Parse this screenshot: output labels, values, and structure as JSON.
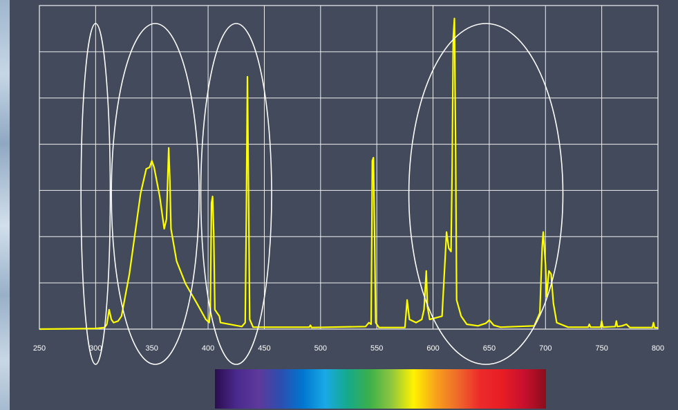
{
  "chart_data": {
    "type": "line",
    "title": "",
    "xlabel": "",
    "ylabel": "",
    "xlim": [
      250,
      800
    ],
    "ylim": [
      0,
      1
    ],
    "x_ticks": [
      "250",
      "300",
      "350",
      "400",
      "450",
      "500",
      "550",
      "600",
      "650",
      "700",
      "750",
      "800"
    ],
    "grid": true,
    "series": [
      {
        "color": "#ffff00",
        "points": [
          [
            250,
            0.0
          ],
          [
            300,
            0.002
          ],
          [
            308,
            0.005
          ],
          [
            310,
            0.015
          ],
          [
            312,
            0.06
          ],
          [
            314,
            0.03
          ],
          [
            316,
            0.02
          ],
          [
            320,
            0.025
          ],
          [
            323,
            0.04
          ],
          [
            330,
            0.17
          ],
          [
            340,
            0.42
          ],
          [
            345,
            0.495
          ],
          [
            348,
            0.5
          ],
          [
            350,
            0.52
          ],
          [
            352,
            0.5
          ],
          [
            357,
            0.41
          ],
          [
            361,
            0.31
          ],
          [
            363,
            0.34
          ],
          [
            365,
            0.56
          ],
          [
            366,
            0.46
          ],
          [
            367,
            0.31
          ],
          [
            372,
            0.21
          ],
          [
            380,
            0.14
          ],
          [
            390,
            0.08
          ],
          [
            398,
            0.03
          ],
          [
            401,
            0.02
          ],
          [
            402,
            0.06
          ],
          [
            403,
            0.39
          ],
          [
            404,
            0.41
          ],
          [
            405,
            0.3
          ],
          [
            406,
            0.06
          ],
          [
            408,
            0.05
          ],
          [
            410,
            0.04
          ],
          [
            411,
            0.02
          ],
          [
            430,
            0.008
          ],
          [
            433,
            0.02
          ],
          [
            434,
            0.35
          ],
          [
            435,
            0.78
          ],
          [
            436,
            0.4
          ],
          [
            437,
            0.03
          ],
          [
            440,
            0.006
          ],
          [
            490,
            0.006
          ],
          [
            491,
            0.012
          ],
          [
            492,
            0.005
          ],
          [
            540,
            0.008
          ],
          [
            543,
            0.02
          ],
          [
            545,
            0.015
          ],
          [
            546,
            0.52
          ],
          [
            547,
            0.53
          ],
          [
            548,
            0.3
          ],
          [
            549,
            0.02
          ],
          [
            552,
            0.005
          ],
          [
            575,
            0.005
          ],
          [
            577,
            0.09
          ],
          [
            579,
            0.03
          ],
          [
            585,
            0.02
          ],
          [
            590,
            0.03
          ],
          [
            592,
            0.06
          ],
          [
            594,
            0.18
          ],
          [
            595,
            0.07
          ],
          [
            597,
            0.03
          ],
          [
            608,
            0.04
          ],
          [
            612,
            0.3
          ],
          [
            614,
            0.25
          ],
          [
            616,
            0.24
          ],
          [
            617,
            0.5
          ],
          [
            618,
            0.9
          ],
          [
            619,
            0.96
          ],
          [
            620,
            0.6
          ],
          [
            621,
            0.09
          ],
          [
            625,
            0.04
          ],
          [
            630,
            0.015
          ],
          [
            640,
            0.01
          ],
          [
            647,
            0.018
          ],
          [
            650,
            0.028
          ],
          [
            654,
            0.012
          ],
          [
            660,
            0.006
          ],
          [
            690,
            0.01
          ],
          [
            695,
            0.05
          ],
          [
            697,
            0.25
          ],
          [
            698,
            0.3
          ],
          [
            700,
            0.2
          ],
          [
            701,
            0.1
          ],
          [
            703,
            0.18
          ],
          [
            705,
            0.17
          ],
          [
            707,
            0.08
          ],
          [
            710,
            0.02
          ],
          [
            720,
            0.006
          ],
          [
            738,
            0.006
          ],
          [
            739,
            0.015
          ],
          [
            740,
            0.006
          ],
          [
            749,
            0.006
          ],
          [
            750,
            0.025
          ],
          [
            751,
            0.006
          ],
          [
            762,
            0.008
          ],
          [
            763,
            0.025
          ],
          [
            764,
            0.008
          ],
          [
            768,
            0.01
          ],
          [
            772,
            0.015
          ],
          [
            775,
            0.005
          ],
          [
            795,
            0.005
          ],
          [
            796,
            0.02
          ],
          [
            797,
            0.005
          ],
          [
            800,
            0.004
          ]
        ]
      }
    ],
    "ellipses": [
      {
        "x_center": 300,
        "x_min": 288,
        "x_max": 314
      },
      {
        "x_center": 353,
        "x_min": 325,
        "x_max": 403
      },
      {
        "x_center": 425,
        "x_min": 395,
        "x_max": 458
      },
      {
        "x_center": 647,
        "x_min": 598,
        "x_max": 735
      }
    ]
  },
  "colors": {
    "background": "#434a5b",
    "grid": "#f2f2f2",
    "line": "#ffff00",
    "ellipse": "#ffffff",
    "spectrum": [
      "#2a0d4f",
      "#4b2a8e",
      "#5d3a9b",
      "#2b4fb0",
      "#0077d0",
      "#1aa9e6",
      "#15a98c",
      "#3bb04a",
      "#8ec63f",
      "#fff200",
      "#f7a21b",
      "#ef6a2a",
      "#ec2b2b",
      "#e81d24",
      "#c8102e",
      "#8a0e1c"
    ]
  }
}
